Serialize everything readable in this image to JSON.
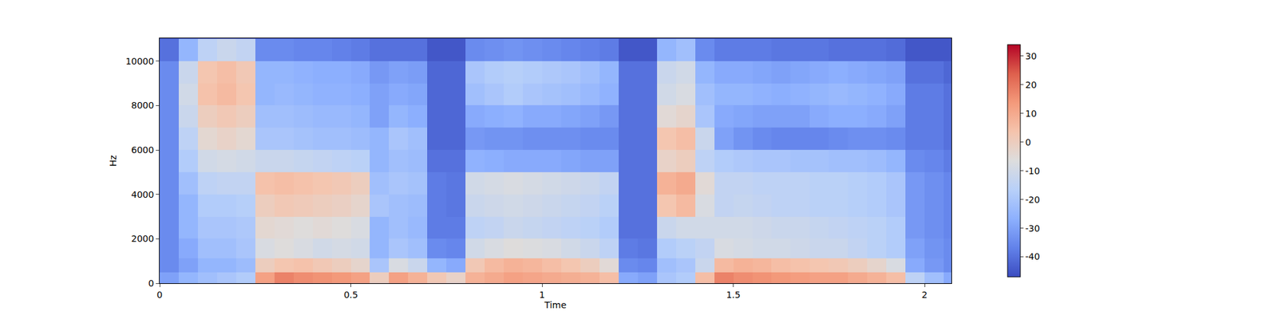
{
  "chart_data": {
    "type": "heatmap",
    "x_label": "Time",
    "y_label": "Hz",
    "xlim": [
      0,
      2.07
    ],
    "xticks": [
      0,
      0.5,
      1,
      1.5,
      2
    ],
    "ylim": [
      0,
      11025
    ],
    "yticks": [
      0,
      2000,
      4000,
      6000,
      8000,
      10000
    ],
    "x": [
      0.025,
      0.075,
      0.125,
      0.175,
      0.225,
      0.275,
      0.325,
      0.375,
      0.425,
      0.475,
      0.525,
      0.575,
      0.625,
      0.675,
      0.725,
      0.775,
      0.825,
      0.875,
      0.925,
      0.975,
      1.025,
      1.075,
      1.125,
      1.175,
      1.225,
      1.275,
      1.325,
      1.375,
      1.425,
      1.475,
      1.525,
      1.575,
      1.625,
      1.675,
      1.725,
      1.775,
      1.825,
      1.875,
      1.925,
      1.975,
      2.025,
      2.075
    ],
    "y": [
      250,
      750,
      1500,
      2500,
      3500,
      4500,
      5500,
      6500,
      7500,
      8500,
      9500,
      10500
    ],
    "z": [
      [
        -30,
        -25,
        -22,
        -20,
        -18,
        12,
        18,
        16,
        15,
        14,
        12,
        0,
        12,
        8,
        2,
        -2,
        8,
        10,
        12,
        11,
        10,
        9,
        8,
        5,
        -28,
        -30,
        -20,
        -18,
        5,
        18,
        16,
        15,
        14,
        13,
        12,
        12,
        10,
        8,
        5,
        -15,
        -22,
        -28
      ],
      [
        -35,
        -30,
        -25,
        -25,
        -23,
        0,
        3,
        4,
        2,
        0,
        -3,
        -20,
        -8,
        -12,
        -25,
        -28,
        2,
        6,
        8,
        7,
        5,
        3,
        0,
        -5,
        -35,
        -36,
        -22,
        -20,
        -12,
        6,
        8,
        7,
        5,
        4,
        3,
        2,
        0,
        -3,
        -8,
        -28,
        -32,
        -35
      ],
      [
        -35,
        -28,
        -22,
        -22,
        -20,
        -8,
        -6,
        -8,
        -10,
        -9,
        -10,
        -25,
        -20,
        -22,
        -35,
        -36,
        -10,
        -8,
        -6,
        -7,
        -8,
        -10,
        -12,
        -15,
        -38,
        -39,
        -18,
        -16,
        -14,
        -8,
        -9,
        -10,
        -10,
        -11,
        -12,
        -12,
        -14,
        -16,
        -18,
        -30,
        -33,
        -35
      ],
      [
        -35,
        -25,
        -20,
        -20,
        -19,
        -4,
        -5,
        -6,
        -5,
        -6,
        -8,
        -25,
        -22,
        -24,
        -38,
        -38,
        -15,
        -14,
        -12,
        -13,
        -14,
        -15,
        -16,
        -18,
        -40,
        -40,
        -12,
        -10,
        -10,
        -10,
        -10,
        -11,
        -12,
        -12,
        -13,
        -14,
        -15,
        -16,
        -18,
        -32,
        -34,
        -36
      ],
      [
        -35,
        -25,
        -18,
        -18,
        -17,
        0,
        2,
        1,
        0,
        -1,
        -3,
        -20,
        -22,
        -23,
        -38,
        -39,
        -12,
        -11,
        -10,
        -11,
        -12,
        -13,
        -14,
        -16,
        -40,
        -40,
        3,
        6,
        -8,
        -14,
        -13,
        -14,
        -15,
        -15,
        -16,
        -16,
        -17,
        -18,
        -20,
        -32,
        -34,
        -36
      ],
      [
        -35,
        -22,
        -15,
        -14,
        -14,
        4,
        5,
        4,
        3,
        2,
        0,
        -22,
        -20,
        -21,
        -38,
        -39,
        -10,
        -9,
        -8,
        -9,
        -10,
        -11,
        -12,
        -14,
        -40,
        -40,
        8,
        10,
        -5,
        -14,
        -14,
        -15,
        -15,
        -15,
        -16,
        -16,
        -17,
        -18,
        -20,
        -32,
        -34,
        -36
      ],
      [
        -35,
        -18,
        -10,
        -9,
        -10,
        -12,
        -12,
        -13,
        -14,
        -15,
        -16,
        -25,
        -22,
        -23,
        -40,
        -40,
        -26,
        -27,
        -28,
        -28,
        -28,
        -29,
        -30,
        -30,
        -40,
        -40,
        -2,
        0,
        -15,
        -18,
        -19,
        -20,
        -20,
        -21,
        -21,
        -22,
        -22,
        -23,
        -25,
        -35,
        -36,
        -38
      ],
      [
        -35,
        -15,
        -4,
        -2,
        -4,
        -20,
        -20,
        -21,
        -22,
        -22,
        -23,
        -25,
        -20,
        -22,
        -42,
        -42,
        -32,
        -33,
        -33,
        -34,
        -34,
        -34,
        -35,
        -35,
        -40,
        -40,
        3,
        5,
        -12,
        -30,
        -33,
        -35,
        -36,
        -36,
        -36,
        -35,
        -34,
        -34,
        -35,
        -38,
        -38,
        -40
      ],
      [
        -35,
        -12,
        0,
        2,
        0,
        -22,
        -22,
        -23,
        -24,
        -24,
        -25,
        -30,
        -25,
        -27,
        -42,
        -42,
        -28,
        -27,
        -26,
        -28,
        -28,
        -29,
        -30,
        -32,
        -40,
        -40,
        -5,
        -3,
        -20,
        -28,
        -29,
        -30,
        -30,
        -30,
        -28,
        -27,
        -27,
        -28,
        -30,
        -38,
        -38,
        -40
      ],
      [
        -35,
        -10,
        4,
        6,
        3,
        -25,
        -24,
        -25,
        -26,
        -26,
        -27,
        -30,
        -28,
        -29,
        -42,
        -42,
        -22,
        -20,
        -18,
        -20,
        -21,
        -22,
        -24,
        -26,
        -40,
        -40,
        -10,
        -8,
        -22,
        -25,
        -25,
        -26,
        -27,
        -26,
        -25,
        -24,
        -25,
        -26,
        -28,
        -38,
        -38,
        -40
      ],
      [
        -35,
        -12,
        3,
        5,
        2,
        -25,
        -25,
        -26,
        -27,
        -27,
        -28,
        -32,
        -30,
        -31,
        -42,
        -42,
        -20,
        -18,
        -17,
        -18,
        -19,
        -20,
        -22,
        -25,
        -40,
        -40,
        -12,
        -10,
        -25,
        -28,
        -28,
        -29,
        -30,
        -29,
        -28,
        -27,
        -28,
        -29,
        -30,
        -40,
        -40,
        -42
      ],
      [
        -40,
        -25,
        -15,
        -12,
        -14,
        -35,
        -35,
        -36,
        -36,
        -37,
        -38,
        -40,
        -40,
        -40,
        -45,
        -45,
        -35,
        -34,
        -33,
        -34,
        -35,
        -36,
        -37,
        -38,
        -45,
        -45,
        -25,
        -22,
        -35,
        -38,
        -38,
        -38,
        -39,
        -39,
        -39,
        -40,
        -40,
        -40,
        -41,
        -45,
        -45,
        -45
      ]
    ],
    "colorbar": {
      "range": [
        -47,
        34
      ],
      "ticks": [
        -40,
        -30,
        -20,
        -10,
        0,
        10,
        20,
        30
      ]
    }
  }
}
